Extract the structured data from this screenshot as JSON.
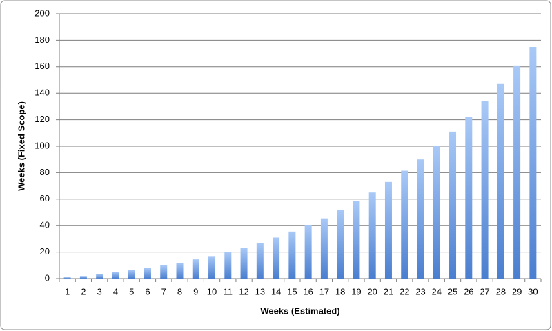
{
  "chart_data": {
    "type": "bar",
    "x_label": "Weeks (Estimated)",
    "y_label": "Weeks (Fixed Scope)",
    "categories": [
      1,
      2,
      3,
      4,
      5,
      6,
      7,
      8,
      9,
      10,
      11,
      12,
      13,
      14,
      15,
      16,
      17,
      18,
      19,
      20,
      21,
      22,
      23,
      24,
      25,
      26,
      27,
      28,
      29,
      30
    ],
    "values": [
      1,
      2,
      3.5,
      5,
      6.5,
      8,
      10,
      12,
      14.5,
      17,
      20,
      23,
      27,
      31,
      35.5,
      40.5,
      45.5,
      52,
      58.5,
      65,
      73,
      81.5,
      90,
      100,
      111,
      122,
      134,
      147,
      161,
      175
    ],
    "gradient": [
      "#a9c9f7",
      "#4a7ecf"
    ],
    "ylim": [
      0,
      200
    ],
    "yticks": [
      0,
      20,
      40,
      60,
      80,
      100,
      120,
      140,
      160,
      180,
      200
    ],
    "grid": true
  }
}
